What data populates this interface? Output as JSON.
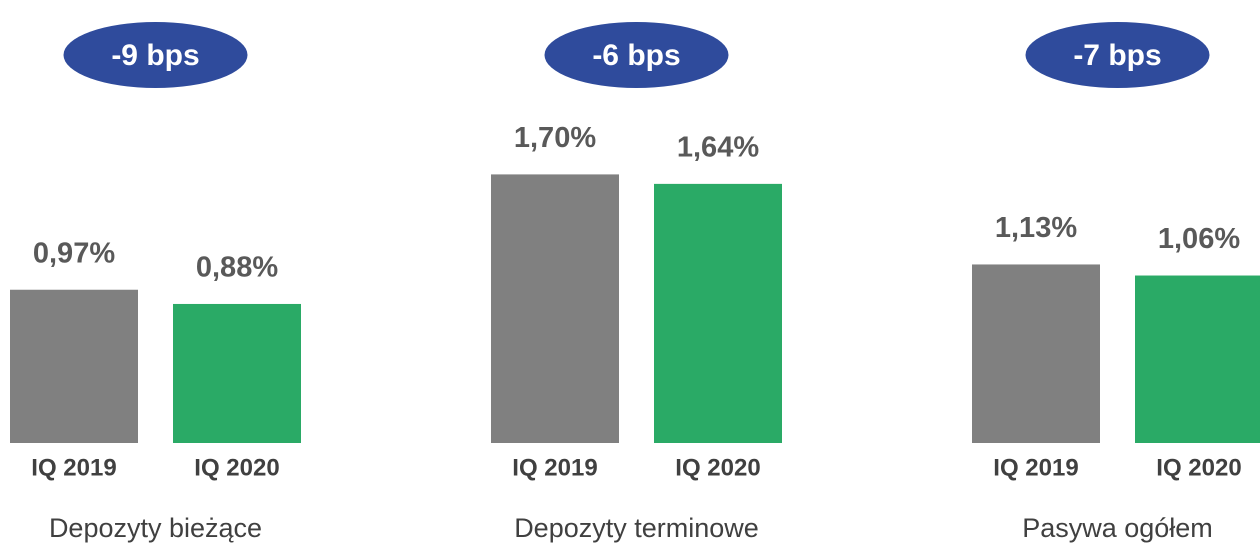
{
  "chart_data": [
    {
      "type": "bar",
      "title": "Depozyty bieżące",
      "annotation": "-9 bps",
      "categories": [
        "IQ 2019",
        "IQ 2020"
      ],
      "values": [
        0.97,
        0.88
      ],
      "value_labels": [
        "0,97%",
        "0,88%"
      ],
      "colors": [
        "#808080",
        "#2aaa66"
      ]
    },
    {
      "type": "bar",
      "title": "Depozyty terminowe",
      "annotation": "-6 bps",
      "categories": [
        "IQ 2019",
        "IQ 2020"
      ],
      "values": [
        1.7,
        1.64
      ],
      "value_labels": [
        "1,70%",
        "1,64%"
      ],
      "colors": [
        "#808080",
        "#2aaa66"
      ]
    },
    {
      "type": "bar",
      "title": "Pasywa ogółem",
      "annotation": "-7 bps",
      "categories": [
        "IQ 2019",
        "IQ 2020"
      ],
      "values": [
        1.13,
        1.06
      ],
      "value_labels": [
        "1,13%",
        "1,06%"
      ],
      "colors": [
        "#808080",
        "#2aaa66"
      ]
    }
  ]
}
